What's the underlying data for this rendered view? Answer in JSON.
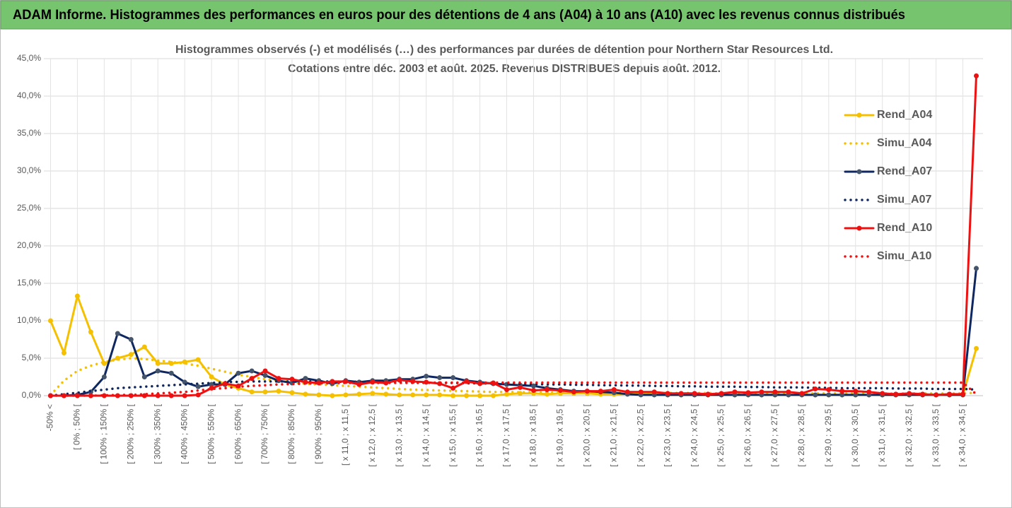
{
  "chart_data": {
    "type": "line",
    "title": "ADAM Informe. Histogrammes des performances en euros pour des détentions de 4 ans (A04) à 10 ans (A10) avec les revenus connus distribués",
    "subtitle": [
      "Histogrammes observés (-) et modélisés (…) des performances par durées de détention pour Northern Star Resources Ltd.",
      "Cotations entre déc. 2003 et août. 2025. Revenus DISTRIBUES depuis août. 2012."
    ],
    "categories": [
      "-50% <",
      null,
      "[ 0% ; 50% [",
      null,
      "[ 100% ; 150% [",
      null,
      "[ 200% ; 250% [",
      null,
      "[ 300% ; 350% [",
      null,
      "[ 400% ; 450% [",
      null,
      "[ 500% ; 550% [",
      null,
      "[ 600% ; 650% [",
      null,
      "[ 700% ; 750% [",
      null,
      "[ 800% ; 850% [",
      null,
      "[ 900% ; 950% [",
      null,
      "[ x 11,0 ; x 11,5 [",
      null,
      "[ x 12,0 ; x 12,5 [",
      null,
      "[ x 13,0 ; x 13,5 [",
      null,
      "[ x 14,0 ; x 14,5 [",
      null,
      "[ x 15,0 ; x 15,5 [",
      null,
      "[ x 16,0 ; x 16,5 [",
      null,
      "[ x 17,0 ; x 17,5 [",
      null,
      "[ x 18,0 ; x 18,5 [",
      null,
      "[ x 19,0 ; x 19,5 [",
      null,
      "[ x 20,0 ; x 20,5 [",
      null,
      "[ x 21,0 ; x 21,5 [",
      null,
      "[ x 22,0 ; x 22,5 [",
      null,
      "[ x 23,0 ; x 23,5 [",
      null,
      "[ x 24,0 ; x 24,5 [",
      null,
      "[ x 25,0 ; x 25,5 [",
      null,
      "[ x 26,0 ; x 26,5 [",
      null,
      "[ x 27,0 ; x 27,5 [",
      null,
      "[ x 28,0 ; x 28,5 [",
      null,
      "[ x 29,0 ; x 29,5 [",
      null,
      "[ x 30,0 ; x 30,5 [",
      null,
      "[ x 31,0 ; x 31,5 [",
      null,
      "[ x 32,0 ; x 32,5 [",
      null,
      "[ x 33,0 ; x 33,5 [",
      null,
      "[ x 34,0 ; x 34,5 [",
      null
    ],
    "series": [
      {
        "name": "Rend_A04",
        "color": "#f5c000",
        "style": "solid",
        "marker": true,
        "values": [
          10.0,
          5.7,
          13.3,
          8.5,
          4.3,
          5.0,
          5.5,
          6.5,
          4.3,
          4.3,
          4.5,
          4.8,
          2.5,
          1.5,
          1.0,
          0.5,
          0.5,
          0.6,
          0.4,
          0.2,
          0.1,
          0.0,
          0.1,
          0.2,
          0.3,
          0.2,
          0.1,
          0.1,
          0.1,
          0.1,
          0.0,
          0.0,
          0.0,
          0.0,
          0.2,
          0.3,
          0.3,
          0.2,
          0.3,
          0.3,
          0.3,
          0.2,
          0.2,
          0.2,
          0.2,
          0.2,
          0.1,
          0.1,
          0.1,
          0.1,
          0.1,
          0.1,
          0.1,
          0.1,
          0.1,
          0.1,
          0.1,
          0.1,
          0.1,
          0.1,
          0.1,
          0.1,
          0.1,
          0.1,
          0.1,
          0.1,
          0.1,
          0.1,
          0.1,
          6.3
        ]
      },
      {
        "name": "Simu_A04",
        "color": "#f5c000",
        "style": "dotted",
        "marker": false,
        "values": [
          0.1,
          2.0,
          3.3,
          4.0,
          4.5,
          4.8,
          5.0,
          4.9,
          4.7,
          4.5,
          4.3,
          4.0,
          3.6,
          3.2,
          2.8,
          2.5,
          2.2,
          2.0,
          1.8,
          1.6,
          1.5,
          1.4,
          1.3,
          1.2,
          1.1,
          1.0,
          0.9,
          0.8,
          0.75,
          0.7,
          0.65,
          0.6,
          0.55,
          0.5,
          0.5,
          0.45,
          0.45,
          0.4,
          0.4,
          0.4,
          0.35,
          0.35,
          0.35,
          0.35,
          0.35,
          0.35,
          0.35,
          0.35,
          0.35,
          0.35,
          0.3,
          0.3,
          0.3,
          0.3,
          0.3,
          0.3,
          0.3,
          0.3,
          0.3,
          0.3,
          0.3,
          0.3,
          0.3,
          0.3,
          0.3,
          0.3,
          0.3,
          0.3,
          0.3,
          0.4
        ]
      },
      {
        "name": "Rend_A07",
        "color": "#0f2760",
        "style": "solid",
        "marker": true,
        "values": [
          0,
          0,
          0.1,
          0.5,
          2.5,
          8.3,
          7.5,
          2.5,
          3.3,
          3.0,
          1.8,
          1.2,
          1.5,
          1.5,
          3.0,
          3.3,
          2.7,
          2.0,
          1.7,
          2.3,
          2.0,
          1.6,
          2.0,
          1.8,
          2.0,
          2.0,
          2.2,
          2.2,
          2.6,
          2.4,
          2.4,
          2.0,
          1.8,
          1.6,
          1.5,
          1.4,
          1.3,
          1.0,
          0.8,
          0.6,
          0.6,
          0.5,
          0.4,
          0.2,
          0.1,
          0.1,
          0.1,
          0.1,
          0.1,
          0.1,
          0.1,
          0.1,
          0.1,
          0.1,
          0.1,
          0.1,
          0.1,
          0.1,
          0.1,
          0.1,
          0.1,
          0.1,
          0.1,
          0.1,
          0.1,
          0.1,
          0.1,
          0.1,
          0.1,
          17.0
        ]
      },
      {
        "name": "Simu_A07",
        "color": "#0f2760",
        "style": "dotted",
        "marker": false,
        "values": [
          0,
          0.2,
          0.4,
          0.6,
          0.8,
          1.0,
          1.1,
          1.2,
          1.3,
          1.4,
          1.5,
          1.6,
          1.7,
          1.8,
          1.85,
          1.9,
          1.9,
          1.9,
          1.9,
          1.9,
          1.9,
          1.9,
          1.85,
          1.85,
          1.8,
          1.8,
          1.8,
          1.75,
          1.75,
          1.7,
          1.7,
          1.65,
          1.65,
          1.6,
          1.6,
          1.55,
          1.55,
          1.5,
          1.5,
          1.45,
          1.45,
          1.4,
          1.4,
          1.35,
          1.35,
          1.3,
          1.3,
          1.25,
          1.25,
          1.2,
          1.2,
          1.2,
          1.15,
          1.15,
          1.1,
          1.1,
          1.1,
          1.05,
          1.05,
          1.0,
          1.0,
          1.0,
          1.0,
          0.95,
          0.95,
          0.95,
          0.9,
          0.9,
          0.9,
          0.8
        ]
      },
      {
        "name": "Rend_A10",
        "color": "#ee1111",
        "style": "solid",
        "marker": true,
        "values": [
          0,
          0,
          0,
          0,
          0,
          0,
          0,
          0,
          0,
          0,
          0,
          0.1,
          1.0,
          1.6,
          1.3,
          2.3,
          3.3,
          2.3,
          2.2,
          1.8,
          1.7,
          1.9,
          1.9,
          1.5,
          1.8,
          1.7,
          2.1,
          1.9,
          1.8,
          1.6,
          1.0,
          1.9,
          1.6,
          1.7,
          0.8,
          1.1,
          0.7,
          0.8,
          0.7,
          0.5,
          0.6,
          0.6,
          0.8,
          0.5,
          0.5,
          0.5,
          0.3,
          0.3,
          0.3,
          0.2,
          0.3,
          0.5,
          0.4,
          0.5,
          0.5,
          0.5,
          0.3,
          0.9,
          0.8,
          0.6,
          0.6,
          0.5,
          0.3,
          0.2,
          0.3,
          0.2,
          0.1,
          0.2,
          0.2,
          42.7
        ]
      },
      {
        "name": "Simu_A10",
        "color": "#ee1111",
        "style": "dotted",
        "marker": false,
        "values": [
          0,
          0,
          0,
          0,
          0.05,
          0.1,
          0.1,
          0.2,
          0.3,
          0.4,
          0.5,
          0.7,
          0.9,
          1.0,
          1.2,
          1.3,
          1.4,
          1.5,
          1.55,
          1.6,
          1.65,
          1.65,
          1.7,
          1.7,
          1.7,
          1.7,
          1.7,
          1.7,
          1.7,
          1.75,
          1.75,
          1.75,
          1.75,
          1.75,
          1.75,
          1.75,
          1.75,
          1.75,
          1.75,
          1.75,
          1.75,
          1.75,
          1.75,
          1.75,
          1.75,
          1.75,
          1.75,
          1.75,
          1.75,
          1.75,
          1.75,
          1.75,
          1.75,
          1.75,
          1.75,
          1.75,
          1.75,
          1.75,
          1.75,
          1.75,
          1.75,
          1.75,
          1.75,
          1.75,
          1.75,
          1.75,
          1.75,
          1.75,
          1.75,
          0.2
        ]
      }
    ],
    "ylim": [
      0,
      45
    ],
    "yticks": [
      {
        "value": 0,
        "label": "0,0%"
      },
      {
        "value": 5,
        "label": "5,0%"
      },
      {
        "value": 10,
        "label": "10,0%"
      },
      {
        "value": 15,
        "label": "15,0%"
      },
      {
        "value": 20,
        "label": "20,0%"
      },
      {
        "value": 25,
        "label": "25,0%"
      },
      {
        "value": 30,
        "label": "30,0%"
      },
      {
        "value": 35,
        "label": "35,0%"
      },
      {
        "value": 40,
        "label": "40,0%"
      },
      {
        "value": 45,
        "label": "45,0%"
      }
    ],
    "grid": true,
    "legend": "right"
  }
}
